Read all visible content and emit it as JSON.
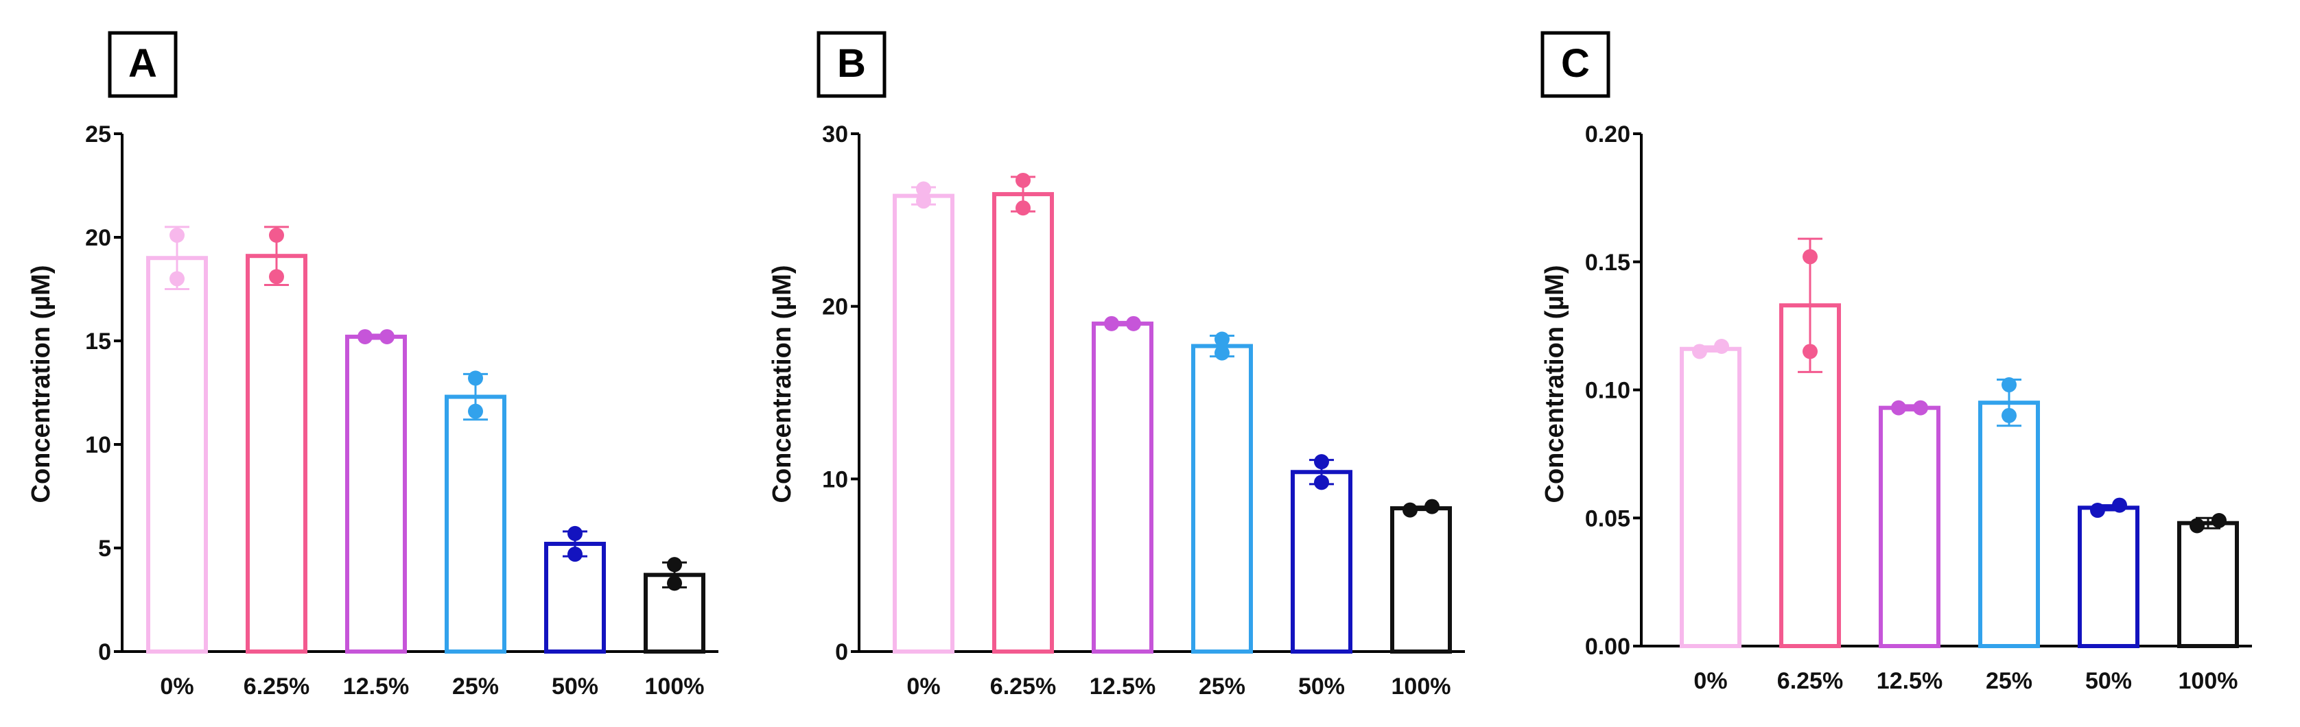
{
  "chart_data": [
    {
      "type": "bar",
      "panel_label": "A",
      "categories": [
        "0%",
        "6.25%",
        "12.5%",
        "25%",
        "50%",
        "100%"
      ],
      "colors": [
        "#f7b8ec",
        "#f35a8f",
        "#c655d9",
        "#32a2ec",
        "#1313bf",
        "#111111"
      ],
      "values": [
        19.0,
        19.1,
        15.2,
        12.3,
        5.2,
        3.7
      ],
      "errors": [
        1.5,
        1.4,
        0.1,
        1.1,
        0.6,
        0.6
      ],
      "points": [
        [
          20.1,
          18.0
        ],
        [
          20.1,
          18.1
        ],
        [
          15.2,
          15.2
        ],
        [
          13.2,
          11.6
        ],
        [
          5.7,
          4.7
        ],
        [
          4.2,
          3.3
        ]
      ],
      "ylabel": "Concentration (µM)",
      "ylim": [
        0,
        25
      ],
      "yticks": [
        0,
        5,
        10,
        15,
        20,
        25
      ],
      "ytick_labels": [
        "0",
        "5",
        "10",
        "15",
        "20",
        "25"
      ]
    },
    {
      "type": "bar",
      "panel_label": "B",
      "categories": [
        "0%",
        "6.25%",
        "12.5%",
        "25%",
        "50%",
        "100%"
      ],
      "colors": [
        "#f7b8ec",
        "#f35a8f",
        "#c655d9",
        "#32a2ec",
        "#1313bf",
        "#111111"
      ],
      "values": [
        26.4,
        26.5,
        19.0,
        17.7,
        10.4,
        8.3
      ],
      "errors": [
        0.5,
        1.0,
        0.1,
        0.6,
        0.7,
        0.1
      ],
      "points": [
        [
          26.1,
          26.8
        ],
        [
          27.3,
          25.7
        ],
        [
          19.0,
          19.0
        ],
        [
          17.3,
          18.1
        ],
        [
          11.0,
          9.8
        ],
        [
          8.2,
          8.4
        ]
      ],
      "ylabel": "Concentration (µM)",
      "ylim": [
        0,
        30
      ],
      "yticks": [
        0,
        10,
        20,
        30
      ],
      "ytick_labels": [
        "0",
        "10",
        "20",
        "30"
      ]
    },
    {
      "type": "bar",
      "panel_label": "C",
      "categories": [
        "0%",
        "6.25%",
        "12.5%",
        "25%",
        "50%",
        "100%"
      ],
      "colors": [
        "#f7b8ec",
        "#f35a8f",
        "#c655d9",
        "#32a2ec",
        "#1313bf",
        "#111111"
      ],
      "values": [
        0.116,
        0.133,
        0.093,
        0.095,
        0.054,
        0.048
      ],
      "errors": [
        0.001,
        0.026,
        0.001,
        0.009,
        0.001,
        0.002
      ],
      "points": [
        [
          0.115,
          0.117
        ],
        [
          0.152,
          0.115
        ],
        [
          0.093,
          0.093
        ],
        [
          0.102,
          0.09
        ],
        [
          0.053,
          0.055
        ],
        [
          0.047,
          0.049
        ]
      ],
      "ylabel": "Concentration (µM)",
      "ylim": [
        0,
        0.2
      ],
      "yticks": [
        0,
        0.05,
        0.1,
        0.15,
        0.2
      ],
      "ytick_labels": [
        "0.00",
        "0.05",
        "0.10",
        "0.15",
        "0.20"
      ]
    }
  ]
}
